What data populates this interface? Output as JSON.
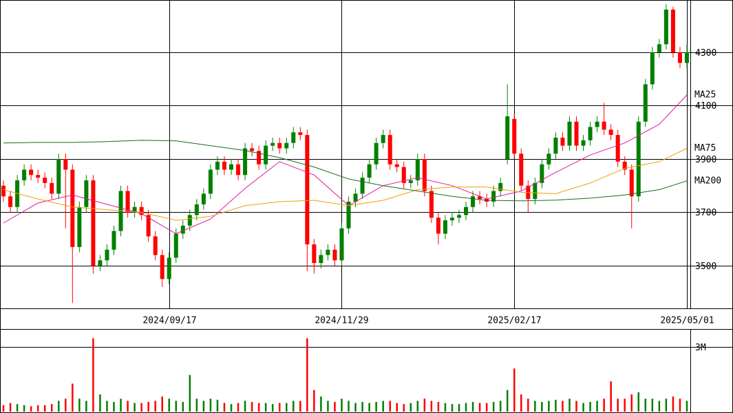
{
  "chart_data": [
    {
      "type": "candlestick",
      "open": [
        3800,
        3760,
        3720,
        3820,
        3860,
        3840,
        3830,
        3810,
        3770,
        3900,
        3860,
        3570,
        3720,
        3820,
        3500,
        3520,
        3560,
        3630,
        3780,
        3700,
        3720,
        3690,
        3610,
        3540,
        3450,
        3530,
        3620,
        3650,
        3690,
        3730,
        3770,
        3860,
        3890,
        3860,
        3880,
        3840,
        3940,
        3930,
        3880,
        3950,
        3960,
        3940,
        3960,
        4000,
        3990,
        3580,
        3510,
        3540,
        3560,
        3520,
        3640,
        3740,
        3770,
        3830,
        3880,
        3960,
        3990,
        3880,
        3870,
        3810,
        3820,
        3900,
        3780,
        3680,
        3620,
        3670,
        3680,
        3690,
        3720,
        3760,
        3750,
        3740,
        3780,
        3900,
        4050,
        3920,
        3800,
        3750,
        3810,
        3880,
        3920,
        3980,
        3950,
        4040,
        3950,
        3970,
        4020,
        4040,
        4010,
        3990,
        3890,
        3860,
        3760,
        4040,
        4180,
        4300,
        4330,
        4460,
        4300,
        4260
      ],
      "high": [
        3820,
        3780,
        3840,
        3880,
        3880,
        3860,
        3850,
        3830,
        3920,
        3920,
        3880,
        3740,
        3840,
        3840,
        3540,
        3580,
        3650,
        3800,
        3800,
        3740,
        3740,
        3710,
        3630,
        3560,
        3550,
        3640,
        3670,
        3710,
        3750,
        3790,
        3880,
        3910,
        3910,
        3900,
        3900,
        3960,
        3960,
        3950,
        3970,
        3980,
        3980,
        3980,
        4020,
        4020,
        4010,
        3600,
        3560,
        3580,
        3580,
        3660,
        3760,
        3790,
        3850,
        3900,
        3980,
        4010,
        4010,
        3900,
        3890,
        3840,
        3920,
        3920,
        3800,
        3700,
        3690,
        3700,
        3710,
        3740,
        3780,
        3780,
        3770,
        3800,
        3830,
        4180,
        4070,
        3940,
        3820,
        3830,
        3900,
        3940,
        4000,
        4000,
        4060,
        4060,
        3990,
        4040,
        4060,
        4110,
        4030,
        4010,
        3910,
        3880,
        4060,
        4200,
        4320,
        4350,
        4480,
        4470,
        4320,
        4330
      ],
      "low": [
        3740,
        3700,
        3700,
        3800,
        3820,
        3810,
        3790,
        3750,
        3750,
        3640,
        3360,
        3550,
        3700,
        3470,
        3480,
        3500,
        3540,
        3610,
        3680,
        3680,
        3670,
        3590,
        3520,
        3420,
        3430,
        3510,
        3600,
        3630,
        3670,
        3710,
        3750,
        3840,
        3840,
        3840,
        3820,
        3820,
        3910,
        3860,
        3860,
        3930,
        3920,
        3920,
        3940,
        3970,
        3480,
        3470,
        3490,
        3520,
        3500,
        3500,
        3620,
        3720,
        3750,
        3810,
        3860,
        3940,
        3860,
        3850,
        3790,
        3790,
        3800,
        3760,
        3660,
        3580,
        3600,
        3650,
        3660,
        3670,
        3700,
        3730,
        3720,
        3720,
        3760,
        3880,
        3900,
        3780,
        3700,
        3730,
        3790,
        3860,
        3900,
        3930,
        3930,
        3930,
        3930,
        3950,
        4000,
        3990,
        3970,
        3870,
        3840,
        3640,
        3740,
        4020,
        4160,
        4280,
        4310,
        4280,
        4240,
        4240
      ],
      "close": [
        3760,
        3720,
        3820,
        3860,
        3840,
        3830,
        3810,
        3770,
        3900,
        3860,
        3570,
        3720,
        3820,
        3500,
        3520,
        3560,
        3630,
        3780,
        3700,
        3720,
        3690,
        3610,
        3540,
        3450,
        3530,
        3620,
        3650,
        3690,
        3730,
        3770,
        3860,
        3890,
        3860,
        3880,
        3840,
        3940,
        3930,
        3880,
        3950,
        3960,
        3940,
        3960,
        4000,
        3990,
        3580,
        3510,
        3540,
        3560,
        3520,
        3640,
        3740,
        3770,
        3830,
        3880,
        3960,
        3990,
        3880,
        3870,
        3810,
        3820,
        3900,
        3780,
        3680,
        3620,
        3670,
        3680,
        3690,
        3720,
        3760,
        3750,
        3740,
        3780,
        3810,
        4060,
        3920,
        3800,
        3750,
        3810,
        3880,
        3920,
        3980,
        3950,
        4040,
        3950,
        3970,
        4020,
        4040,
        4010,
        3990,
        3890,
        3860,
        3760,
        4040,
        4180,
        4300,
        4330,
        4460,
        4300,
        4260,
        4300
      ],
      "up_color": "#008000",
      "down_color": "#ff0000",
      "xlim": [
        -0.5,
        99.5
      ],
      "xticks": [
        {
          "value": 24,
          "label": "2024/09/17"
        },
        {
          "value": 49,
          "label": "2024/11/29"
        },
        {
          "value": 74,
          "label": "2025/02/17"
        },
        {
          "value": 99,
          "label": "2025/05/01"
        }
      ],
      "ylim": [
        3340,
        4496
      ],
      "yticks": [
        3500,
        3700,
        3900,
        4100,
        4300
      ],
      "grid": true,
      "lines": [
        {
          "name": "MA25",
          "color": "#e0199a",
          "x": [
            0,
            5,
            10,
            15,
            20,
            25,
            30,
            35,
            40,
            45,
            50,
            55,
            60,
            65,
            70,
            75,
            80,
            85,
            90,
            95,
            99
          ],
          "values": [
            3660,
            3735,
            3765,
            3730,
            3695,
            3620,
            3675,
            3790,
            3890,
            3840,
            3725,
            3800,
            3830,
            3800,
            3750,
            3780,
            3850,
            3915,
            3960,
            4030,
            4140
          ]
        },
        {
          "name": "MA75",
          "color": "#f0a000",
          "x": [
            0,
            5,
            10,
            15,
            20,
            25,
            30,
            35,
            40,
            45,
            50,
            55,
            60,
            65,
            70,
            75,
            80,
            85,
            90,
            95,
            99
          ],
          "values": [
            3785,
            3750,
            3720,
            3710,
            3700,
            3670,
            3685,
            3725,
            3740,
            3745,
            3725,
            3745,
            3785,
            3795,
            3795,
            3775,
            3770,
            3810,
            3865,
            3890,
            3940
          ]
        },
        {
          "name": "MA200",
          "color": "#1a6b1a",
          "x": [
            0,
            5,
            10,
            15,
            20,
            25,
            30,
            35,
            40,
            45,
            50,
            55,
            60,
            65,
            70,
            75,
            80,
            85,
            90,
            95,
            99
          ],
          "values": [
            3960,
            3962,
            3962,
            3965,
            3970,
            3968,
            3950,
            3932,
            3905,
            3870,
            3825,
            3800,
            3780,
            3760,
            3745,
            3743,
            3746,
            3753,
            3765,
            3785,
            3818
          ]
        }
      ]
    },
    {
      "type": "bar",
      "values": [
        0.3,
        0.4,
        0.35,
        0.3,
        0.25,
        0.3,
        0.3,
        0.35,
        0.5,
        0.6,
        1.3,
        0.6,
        0.5,
        3.4,
        0.8,
        0.5,
        0.45,
        0.6,
        0.5,
        0.4,
        0.4,
        0.45,
        0.5,
        0.7,
        0.6,
        0.5,
        0.45,
        1.7,
        0.6,
        0.5,
        0.6,
        0.55,
        0.4,
        0.35,
        0.4,
        0.5,
        0.45,
        0.4,
        0.4,
        0.35,
        0.4,
        0.4,
        0.5,
        0.5,
        3.4,
        1.0,
        0.7,
        0.5,
        0.45,
        0.6,
        0.5,
        0.4,
        0.45,
        0.4,
        0.45,
        0.5,
        0.5,
        0.4,
        0.35,
        0.4,
        0.5,
        0.6,
        0.5,
        0.45,
        0.4,
        0.35,
        0.35,
        0.4,
        0.45,
        0.4,
        0.4,
        0.45,
        0.5,
        1.0,
        2.0,
        0.8,
        0.6,
        0.5,
        0.45,
        0.5,
        0.55,
        0.5,
        0.6,
        0.5,
        0.4,
        0.45,
        0.5,
        0.6,
        1.4,
        0.6,
        0.6,
        0.8,
        0.9,
        0.6,
        0.6,
        0.5,
        0.6,
        0.7,
        0.6,
        0.5
      ],
      "xlim": [
        -0.5,
        99.5
      ],
      "ylim": [
        0,
        3.8
      ],
      "yticks": [
        {
          "value": 3,
          "label": "3M"
        }
      ],
      "grid": true
    }
  ]
}
